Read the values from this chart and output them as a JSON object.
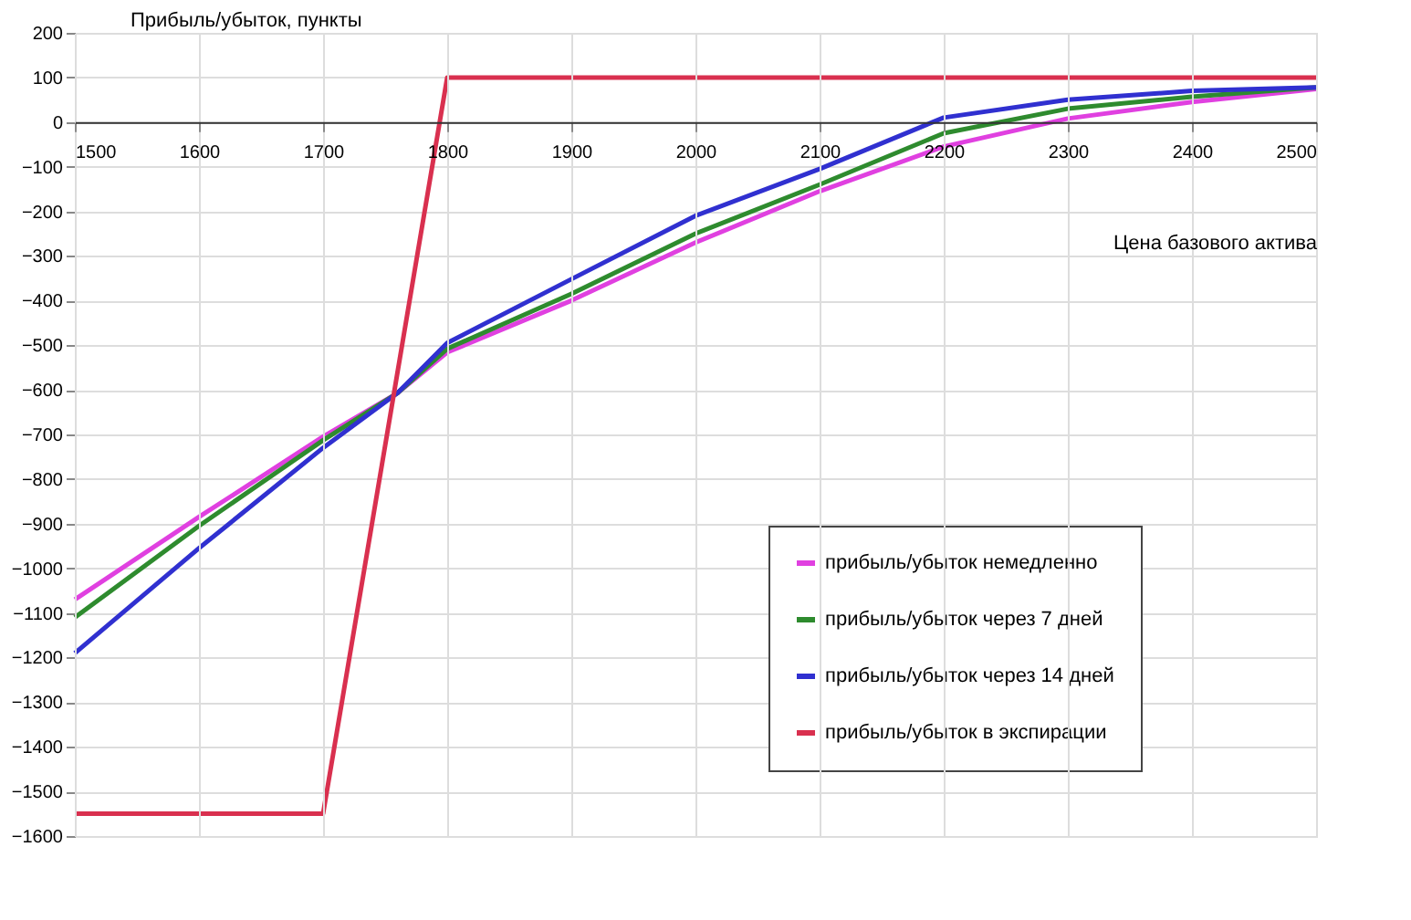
{
  "chart_data": {
    "type": "line",
    "ylabel": "Прибыль/убыток, пункты",
    "xlabel": "Цена базового актива",
    "x": [
      1500,
      1600,
      1700,
      1760,
      1800,
      1900,
      2000,
      2100,
      2200,
      2300,
      2400,
      2500
    ],
    "series": [
      {
        "name": "прибыль/убыток немедленно",
        "color": "#e040e0",
        "values": [
          -1070,
          -885,
          -705,
          -607,
          -516,
          -400,
          -270,
          -155,
          -55,
          8,
          45,
          74
        ]
      },
      {
        "name": "прибыль/убыток через 7 дней",
        "color": "#2e8b2e",
        "values": [
          -1110,
          -905,
          -713,
          -607,
          -508,
          -385,
          -250,
          -140,
          -25,
          30,
          57,
          78
        ]
      },
      {
        "name": "прибыль/убыток через 14 дней",
        "color": "#3030d0",
        "values": [
          -1190,
          -955,
          -730,
          -607,
          -495,
          -352,
          -210,
          -105,
          10,
          50,
          70,
          78
        ]
      },
      {
        "name": "прибыль/убыток в экспирации",
        "color": "#d9304f",
        "x": [
          1500,
          1700,
          1800,
          2500
        ],
        "values": [
          -1550,
          -1550,
          100,
          100
        ]
      }
    ],
    "xlim": [
      1500,
      2500
    ],
    "xticks": [
      1500,
      1600,
      1700,
      1800,
      1900,
      2000,
      2100,
      2200,
      2300,
      2400,
      2500
    ],
    "ylim": [
      -1600,
      200
    ],
    "yticks": [
      200,
      100,
      0,
      -100,
      -200,
      -300,
      -400,
      -500,
      -600,
      -700,
      -800,
      -900,
      -1000,
      -1100,
      -1200,
      -1300,
      -1400,
      -1500,
      -1600
    ],
    "grid": true,
    "legend": "bottom right",
    "marker": "none",
    "line_style": "solid"
  }
}
